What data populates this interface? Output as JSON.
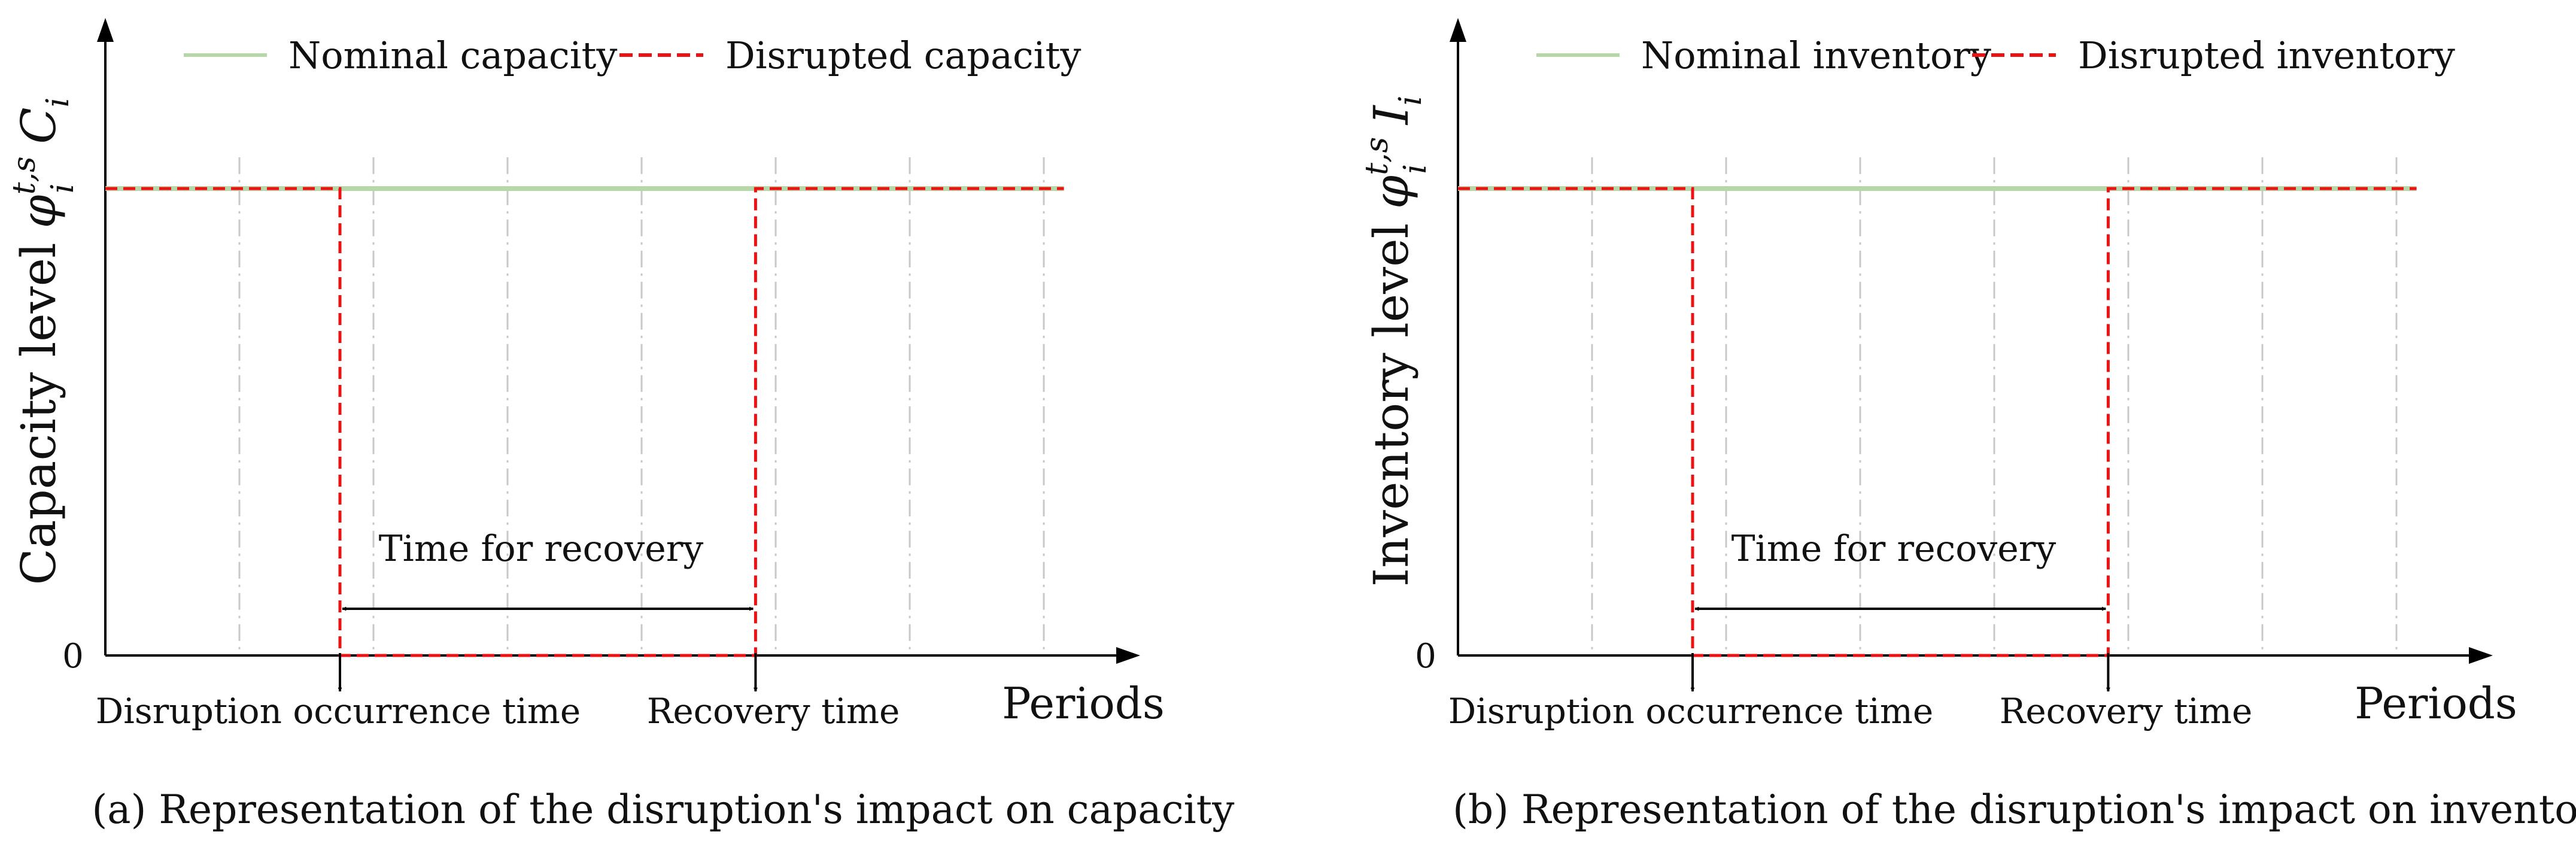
{
  "panels": [
    {
      "caption": "(a) Representation of the disruption's impact on capacity",
      "ylabel_text": "Capacity level",
      "ylabel_symbol": "φ",
      "ylabel_sup": "t,s",
      "ylabel_sub": "i",
      "ylabel_var": "C",
      "ylabel_var_sub": "i",
      "xlabel": "Periods",
      "zero_label": "0",
      "legend": {
        "nominal": "Nominal capacity",
        "disrupted": "Disrupted capacity"
      },
      "events": {
        "disruption": "Disruption occurrence time",
        "recovery": "Recovery time"
      },
      "span_label": "Time for recovery"
    },
    {
      "caption": "(b) Representation of the disruption's impact on inventory",
      "ylabel_text": "Inventory  level",
      "ylabel_symbol": "φ",
      "ylabel_sup": "t,s",
      "ylabel_sub": "i",
      "ylabel_var": "I",
      "ylabel_var_sub": "i",
      "xlabel": "Periods",
      "zero_label": "0",
      "legend": {
        "nominal": "Nominal inventory",
        "disrupted": "Disrupted inventory"
      },
      "events": {
        "disruption": "Disruption occurrence time",
        "recovery": "Recovery time"
      },
      "span_label": "Time for recovery"
    }
  ],
  "chart_data": [
    {
      "type": "line",
      "title": "(a) Representation of the disruption's impact on capacity",
      "xlabel": "Periods",
      "ylabel": "Capacity level φ_i^{t,s} C_i",
      "xlim": [
        0,
        7.5
      ],
      "ylim": [
        0,
        1.1
      ],
      "grid_x": [
        1,
        2,
        3,
        4,
        5,
        6,
        7
      ],
      "disruption_time": 1.75,
      "recovery_time": 4.85,
      "series": [
        {
          "name": "Nominal capacity",
          "color": "#b6d7a8",
          "style": "solid",
          "x": [
            0,
            7.15
          ],
          "y": [
            1,
            1
          ]
        },
        {
          "name": "Disrupted capacity",
          "color": "#ee1111",
          "style": "dashed",
          "x": [
            0,
            1.75,
            1.75,
            4.85,
            4.85,
            7.15
          ],
          "y": [
            1,
            1,
            0,
            0,
            1,
            1
          ]
        }
      ]
    },
    {
      "type": "line",
      "title": "(b) Representation of the disruption's impact on inventory",
      "xlabel": "Periods",
      "ylabel": "Inventory level φ_i^{t,s} I_i",
      "xlim": [
        0,
        7.5
      ],
      "ylim": [
        0,
        1.1
      ],
      "grid_x": [
        1,
        2,
        3,
        4,
        5,
        6,
        7
      ],
      "disruption_time": 1.75,
      "recovery_time": 4.85,
      "series": [
        {
          "name": "Nominal inventory",
          "color": "#b6d7a8",
          "style": "solid",
          "x": [
            0,
            7.15
          ],
          "y": [
            1,
            1
          ]
        },
        {
          "name": "Disrupted inventory",
          "color": "#ee1111",
          "style": "dashed",
          "x": [
            0,
            1.75,
            1.75,
            4.85,
            4.85,
            7.15
          ],
          "y": [
            1,
            1,
            0,
            0,
            1,
            1
          ]
        }
      ]
    }
  ]
}
